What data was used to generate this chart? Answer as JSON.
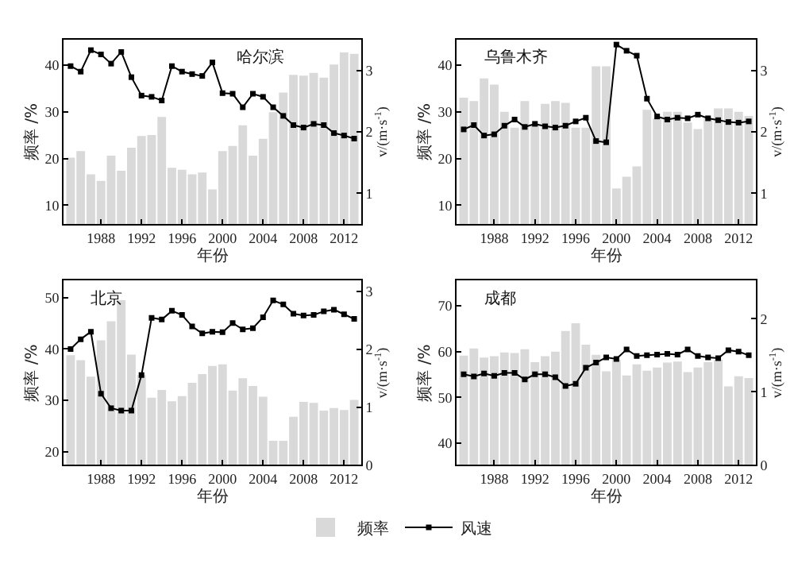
{
  "chart_data": [
    {
      "type": "bar",
      "title": "哈尔滨",
      "xlabel": "年份",
      "ylabel": "频率 /%",
      "y2label": "v/(m·s$^{-1}$)",
      "x": [
        1985,
        1986,
        1987,
        1988,
        1989,
        1990,
        1991,
        1992,
        1993,
        1994,
        1995,
        1996,
        1997,
        1998,
        1999,
        2000,
        2001,
        2002,
        2003,
        2004,
        2005,
        2006,
        2007,
        2008,
        2009,
        2010,
        2011,
        2012,
        2013
      ],
      "xlim": [
        1984.3,
        2013.7
      ],
      "xticks": [
        1988,
        1992,
        1996,
        2000,
        2004,
        2008,
        2012
      ],
      "ylim": [
        6,
        45.4
      ],
      "yticks": [
        10,
        20,
        30,
        40
      ],
      "y2lim": [
        0.5,
        3.5
      ],
      "y2ticks": [
        1,
        2,
        3
      ],
      "marker": "square",
      "line_style": "solid",
      "series": [
        {
          "color": "#d9d9d9",
          "values": [
            20.2,
            21.6,
            16.6,
            15.2,
            20.6,
            17.4,
            22.3,
            24.8,
            25,
            28.9,
            18,
            17.6,
            16.6,
            17,
            13.4,
            21.6,
            22.7,
            27.1,
            20.6,
            24.2,
            29.9,
            34.1,
            37.9,
            37.7,
            38.3,
            37.3,
            40.1,
            42.7,
            42.4
          ]
        },
        {
          "type": "line",
          "axis": "y2",
          "color": "#000000",
          "values": [
            3.07,
            2.98,
            3.33,
            3.26,
            3.11,
            3.3,
            2.89,
            2.59,
            2.57,
            2.51,
            3.07,
            2.98,
            2.94,
            2.91,
            3.13,
            2.63,
            2.62,
            2.4,
            2.62,
            2.57,
            2.4,
            2.26,
            2.11,
            2.07,
            2.13,
            2.11,
            1.98,
            1.94,
            1.89
          ]
        }
      ]
    },
    {
      "type": "bar",
      "title": "乌鲁木齐",
      "xlabel": "年份",
      "ylabel": "频率 /%",
      "y2label": "v/(m·s$^{-1}$)",
      "x": [
        1985,
        1986,
        1987,
        1988,
        1989,
        1990,
        1991,
        1992,
        1993,
        1994,
        1995,
        1996,
        1997,
        1998,
        1999,
        2000,
        2001,
        2002,
        2003,
        2004,
        2005,
        2006,
        2007,
        2008,
        2009,
        2010,
        2011,
        2012,
        2013
      ],
      "xlim": [
        1984.3,
        2013.7
      ],
      "xticks": [
        1988,
        1992,
        1996,
        2000,
        2004,
        2008,
        2012
      ],
      "ylim": [
        6,
        45.4
      ],
      "yticks": [
        10,
        20,
        30,
        40
      ],
      "y2lim": [
        0.5,
        3.5
      ],
      "y2ticks": [
        1,
        2,
        3
      ],
      "marker": "square",
      "line_style": "solid",
      "series": [
        {
          "color": "#d9d9d9",
          "values": [
            33,
            32.3,
            37.1,
            35.8,
            30,
            26.6,
            32.3,
            27.1,
            31.7,
            32.3,
            31.9,
            26.6,
            26.6,
            39.7,
            39.7,
            13.6,
            16.1,
            18.3,
            30.4,
            28.6,
            30,
            30,
            27.7,
            26.3,
            28.6,
            30.7,
            30.7,
            30,
            29.1
          ]
        },
        {
          "type": "line",
          "axis": "y2",
          "color": "#000000",
          "values": [
            2.04,
            2.11,
            1.94,
            1.96,
            2.1,
            2.2,
            2.08,
            2.13,
            2.09,
            2.07,
            2.1,
            2.17,
            2.23,
            1.85,
            1.83,
            3.42,
            3.32,
            3.24,
            2.54,
            2.25,
            2.2,
            2.23,
            2.22,
            2.28,
            2.22,
            2.19,
            2.16,
            2.15,
            2.17
          ]
        }
      ]
    },
    {
      "type": "bar",
      "title": "北京",
      "xlabel": "年份",
      "ylabel": "频率 /%",
      "y2label": "v/(m·s$^{-1}$)",
      "x": [
        1985,
        1986,
        1987,
        1988,
        1989,
        1990,
        1991,
        1992,
        1993,
        1994,
        1995,
        1996,
        1997,
        1998,
        1999,
        2000,
        2001,
        2002,
        2003,
        2004,
        2005,
        2006,
        2007,
        2008,
        2009,
        2010,
        2011,
        2012,
        2013
      ],
      "xlim": [
        1984.3,
        2013.7
      ],
      "xticks": [
        1988,
        1992,
        1996,
        2000,
        2004,
        2008,
        2012
      ],
      "ylim": [
        17.4,
        53.3
      ],
      "yticks": [
        20,
        30,
        40,
        50
      ],
      "y2lim": [
        0,
        3.18
      ],
      "y2ticks": [
        0,
        1,
        2,
        3
      ],
      "marker": "square",
      "line_style": "solid",
      "series": [
        {
          "color": "#d9d9d9",
          "values": [
            38.8,
            37.8,
            34.6,
            41.7,
            45.4,
            49.5,
            38.9,
            34.9,
            30.5,
            32,
            29.8,
            30.8,
            33.4,
            35.1,
            36.7,
            37,
            31.9,
            34.3,
            32.8,
            30.7,
            22.1,
            22.1,
            26.8,
            29.7,
            29.5,
            28,
            28.5,
            28.1,
            30.1
          ]
        },
        {
          "type": "line",
          "axis": "y2",
          "color": "#000000",
          "values": [
            2.0,
            2.17,
            2.3,
            1.23,
            0.98,
            0.94,
            0.94,
            1.55,
            2.54,
            2.51,
            2.66,
            2.59,
            2.39,
            2.27,
            2.3,
            2.29,
            2.45,
            2.34,
            2.36,
            2.55,
            2.84,
            2.77,
            2.61,
            2.58,
            2.59,
            2.65,
            2.68,
            2.6,
            2.52
          ]
        }
      ]
    },
    {
      "type": "bar",
      "title": "成都",
      "xlabel": "年份",
      "ylabel": "频率 /%",
      "y2label": "v/(m·s$^{-1}$)",
      "x": [
        1985,
        1986,
        1987,
        1988,
        1989,
        1990,
        1991,
        1992,
        1993,
        1994,
        1995,
        1996,
        1997,
        1998,
        1999,
        2000,
        2001,
        2002,
        2003,
        2004,
        2005,
        2006,
        2007,
        2008,
        2009,
        2010,
        2011,
        2012,
        2013
      ],
      "xlim": [
        1984.3,
        2013.7
      ],
      "xticks": [
        1988,
        1992,
        1996,
        2000,
        2004,
        2008,
        2012
      ],
      "ylim": [
        35.2,
        75.5
      ],
      "yticks": [
        40,
        50,
        60,
        70
      ],
      "y2lim": [
        0,
        2.52
      ],
      "y2ticks": [
        0,
        1,
        2
      ],
      "marker": "square",
      "line_style": "solid",
      "legend": "bottom",
      "series": [
        {
          "name": "频率",
          "color": "#d9d9d9",
          "values": [
            59.1,
            60.7,
            58.7,
            59,
            59.8,
            59.7,
            60.5,
            57.7,
            59,
            60,
            64.5,
            66.2,
            61.5,
            59.3,
            55.7,
            58.2,
            54.8,
            57.2,
            55.8,
            56.5,
            57.6,
            57.8,
            55.5,
            56.5,
            57.7,
            58.2,
            52.4,
            54.6,
            54.2
          ]
        },
        {
          "type": "line",
          "name": "风速",
          "axis": "y2",
          "color": "#000000",
          "values": [
            1.24,
            1.21,
            1.25,
            1.22,
            1.26,
            1.26,
            1.17,
            1.24,
            1.24,
            1.2,
            1.08,
            1.11,
            1.33,
            1.4,
            1.47,
            1.45,
            1.58,
            1.49,
            1.5,
            1.51,
            1.52,
            1.51,
            1.58,
            1.49,
            1.47,
            1.46,
            1.57,
            1.55,
            1.5
          ]
        }
      ]
    }
  ]
}
